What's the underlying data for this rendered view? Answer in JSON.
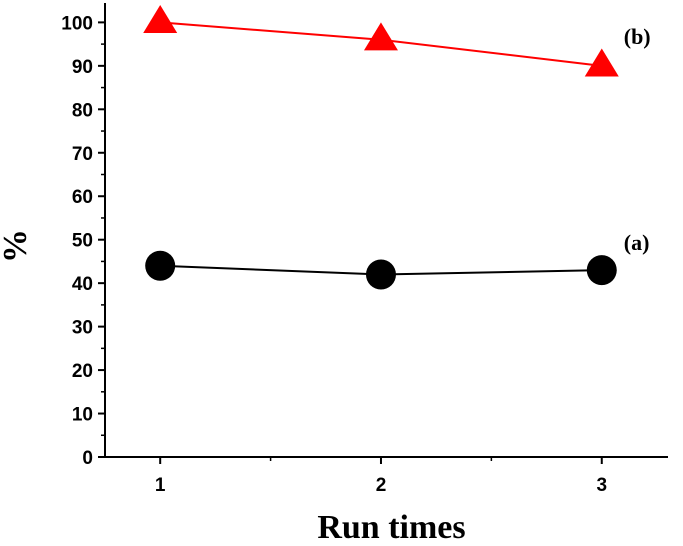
{
  "chart_data": {
    "type": "line",
    "x": [
      1,
      2,
      3
    ],
    "x_ticks": [
      "1",
      "2",
      "3"
    ],
    "xlim": [
      0.75,
      3.3
    ],
    "y_ticks": [
      "0",
      "10",
      "20",
      "30",
      "40",
      "50",
      "60",
      "70",
      "80",
      "90",
      "100"
    ],
    "ylim": [
      0,
      104
    ],
    "xlabel": "Run times",
    "ylabel": "%",
    "grid": false,
    "series": [
      {
        "tag": "(a)",
        "marker": "circle",
        "marker_color": "#000000",
        "line_color": "#000000",
        "values": [
          44,
          42,
          43
        ]
      },
      {
        "tag": "(b)",
        "marker": "triangle",
        "marker_color": "#ff0000",
        "line_color": "#ff0000",
        "values": [
          100,
          96,
          90
        ]
      }
    ]
  }
}
